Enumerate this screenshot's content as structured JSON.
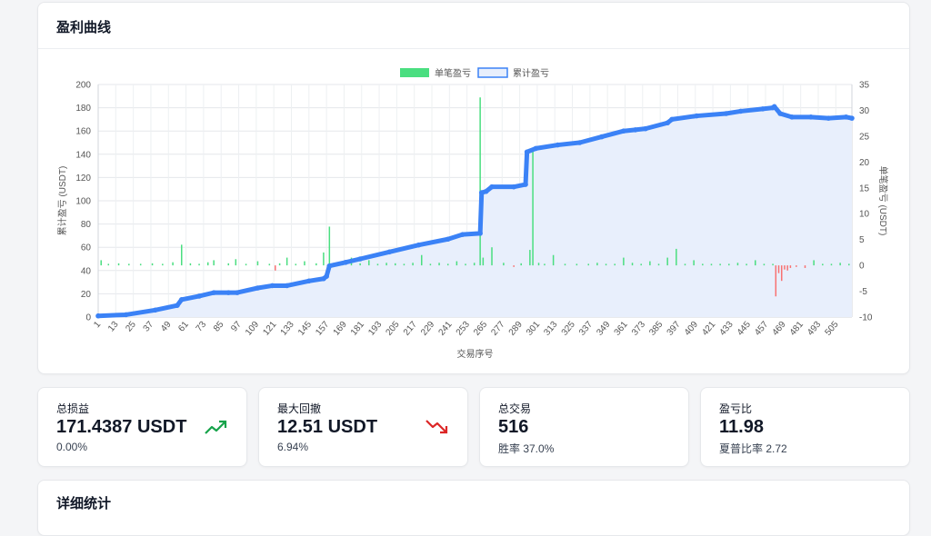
{
  "profit_panel": {
    "title": "盈利曲线"
  },
  "stats": [
    {
      "label": "总损益",
      "value": "171.4387 USDT",
      "sub": "0.00%",
      "icon": "trend-up-icon",
      "icon_color": "#16a34a"
    },
    {
      "label": "最大回撤",
      "value": "12.51 USDT",
      "sub": "6.94%",
      "icon": "trend-down-icon",
      "icon_color": "#dc2626"
    },
    {
      "label": "总交易",
      "value": "516",
      "sub": "胜率 37.0%"
    },
    {
      "label": "盈亏比",
      "value": "11.98",
      "sub": "夏普比率 2.72"
    }
  ],
  "detail": {
    "title": "详细统计"
  },
  "colors": {
    "cum_line": "#3b82f6",
    "cum_fill": "#e8effc",
    "win_bar": "#4ade80",
    "loss_bar": "#f87171"
  },
  "chart_data": {
    "type": "line",
    "title": "",
    "xlabel": "交易序号",
    "ylabel_left": "累计盈亏 (USDT)",
    "ylabel_right": "单笔盈亏 (USDT)",
    "legend": [
      "单笔盈亏",
      "累计盈亏"
    ],
    "legend_position": "top-center",
    "grid": true,
    "x_range": [
      1,
      516
    ],
    "x_tick_labels": [
      "1",
      "13",
      "25",
      "37",
      "49",
      "61",
      "73",
      "85",
      "97",
      "109",
      "121",
      "133",
      "145",
      "157",
      "169",
      "181",
      "193",
      "205",
      "217",
      "229",
      "241",
      "253",
      "265",
      "277",
      "289",
      "301",
      "313",
      "325",
      "337",
      "349",
      "361",
      "373",
      "385",
      "397",
      "409",
      "421",
      "433",
      "445",
      "457",
      "469",
      "481",
      "493",
      "505"
    ],
    "ylim_left": [
      0,
      200
    ],
    "yticks_left": [
      0,
      20,
      40,
      60,
      80,
      100,
      120,
      140,
      160,
      180,
      200
    ],
    "ylim_right": [
      -10,
      35
    ],
    "yticks_right": [
      -10,
      -5,
      0,
      5,
      10,
      15,
      20,
      25,
      30,
      35
    ],
    "series": [
      {
        "name": "累计盈亏",
        "axis": "left",
        "x": [
          1,
          20,
          40,
          55,
          58,
          70,
          80,
          90,
          96,
          110,
          120,
          130,
          145,
          155,
          157,
          159,
          170,
          180,
          200,
          220,
          240,
          250,
          262,
          263,
          266,
          270,
          285,
          293,
          294,
          300,
          315,
          330,
          345,
          360,
          368,
          375,
          390,
          393,
          410,
          430,
          440,
          455,
          462,
          463,
          467,
          475,
          488,
          500,
          512,
          516
        ],
        "y": [
          1,
          2,
          6,
          10,
          15,
          18,
          21,
          21,
          21,
          25,
          27,
          27,
          31,
          33,
          35,
          44,
          47,
          50,
          56,
          62,
          67,
          71,
          72,
          107,
          108,
          112,
          112,
          114,
          142,
          145,
          148,
          150,
          155,
          160,
          161,
          162,
          167,
          170,
          173,
          175,
          177,
          179,
          180,
          181,
          175,
          172,
          172,
          171,
          172,
          171
        ]
      },
      {
        "name": "单笔盈亏",
        "axis": "right",
        "x": [
          3,
          8,
          15,
          22,
          30,
          38,
          45,
          52,
          58,
          64,
          70,
          76,
          80,
          90,
          95,
          102,
          110,
          118,
          122,
          125,
          130,
          136,
          142,
          150,
          155,
          159,
          162,
          168,
          174,
          180,
          186,
          192,
          198,
          204,
          210,
          216,
          222,
          228,
          234,
          240,
          246,
          252,
          258,
          262,
          264,
          270,
          278,
          285,
          290,
          296,
          298,
          302,
          306,
          312,
          320,
          328,
          336,
          342,
          348,
          354,
          360,
          366,
          372,
          378,
          384,
          390,
          396,
          402,
          408,
          414,
          420,
          426,
          432,
          438,
          444,
          450,
          456,
          462,
          464,
          466,
          468,
          470,
          472,
          474,
          478,
          484,
          490,
          496,
          502,
          508,
          514
        ],
        "y": [
          1,
          0.3,
          0.4,
          0.3,
          0.3,
          0.4,
          0.3,
          0.6,
          4,
          0.4,
          0.3,
          0.6,
          1,
          0.4,
          1.2,
          0.3,
          0.8,
          0.3,
          -1,
          0.4,
          1.5,
          0.3,
          0.8,
          0.4,
          2.5,
          7.5,
          0.5,
          0.4,
          1.5,
          0.4,
          1,
          0.3,
          0.5,
          0.4,
          0.3,
          0.5,
          2,
          0.3,
          0.5,
          0.3,
          0.8,
          0.3,
          0.5,
          32.5,
          1.5,
          3.5,
          0.5,
          -0.3,
          0.4,
          3,
          22,
          0.5,
          0.3,
          2,
          0.3,
          0.3,
          0.3,
          0.5,
          0.3,
          0.3,
          1.5,
          0.5,
          0.3,
          0.8,
          0.3,
          1.5,
          3.2,
          0.3,
          1,
          0.3,
          0.3,
          0.3,
          0.3,
          0.5,
          0.3,
          1,
          0.3,
          0.3,
          -6,
          -1.5,
          -3,
          -0.8,
          -1,
          -0.5,
          -0.3,
          -0.5,
          1,
          0.3,
          0.3,
          0.5,
          0.3
        ]
      }
    ]
  }
}
